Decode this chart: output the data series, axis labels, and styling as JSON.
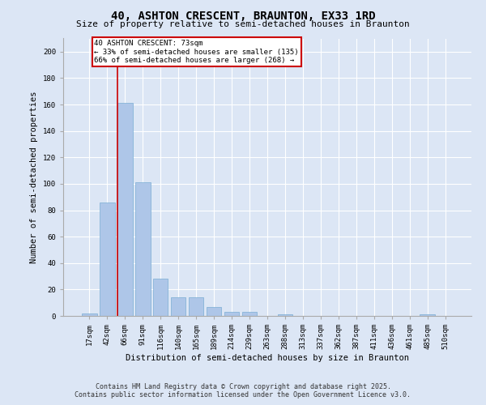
{
  "title1": "40, ASHTON CRESCENT, BRAUNTON, EX33 1RD",
  "title2": "Size of property relative to semi-detached houses in Braunton",
  "xlabel": "Distribution of semi-detached houses by size in Braunton",
  "ylabel": "Number of semi-detached properties",
  "categories": [
    "17sqm",
    "42sqm",
    "66sqm",
    "91sqm",
    "116sqm",
    "140sqm",
    "165sqm",
    "189sqm",
    "214sqm",
    "239sqm",
    "263sqm",
    "288sqm",
    "313sqm",
    "337sqm",
    "362sqm",
    "387sqm",
    "411sqm",
    "436sqm",
    "461sqm",
    "485sqm",
    "510sqm"
  ],
  "values": [
    2,
    86,
    161,
    101,
    28,
    14,
    14,
    7,
    3,
    3,
    0,
    1,
    0,
    0,
    0,
    0,
    0,
    0,
    0,
    1,
    0
  ],
  "bar_color": "#aec6e8",
  "bar_edge_color": "#7aadd4",
  "vline_x_index": 2,
  "vline_color": "#cc0000",
  "annotation_title": "40 ASHTON CRESCENT: 73sqm",
  "annotation_line1": "← 33% of semi-detached houses are smaller (135)",
  "annotation_line2": "66% of semi-detached houses are larger (268) →",
  "annotation_box_color": "#ffffff",
  "annotation_box_edge": "#cc0000",
  "ylim": [
    0,
    210
  ],
  "yticks": [
    0,
    20,
    40,
    60,
    80,
    100,
    120,
    140,
    160,
    180,
    200
  ],
  "background_color": "#dce6f5",
  "plot_bg_color": "#dce6f5",
  "footer1": "Contains HM Land Registry data © Crown copyright and database right 2025.",
  "footer2": "Contains public sector information licensed under the Open Government Licence v3.0.",
  "title1_fontsize": 10,
  "title2_fontsize": 8,
  "tick_fontsize": 6.5,
  "label_fontsize": 7.5,
  "footer_fontsize": 6,
  "annotation_fontsize": 6.5
}
